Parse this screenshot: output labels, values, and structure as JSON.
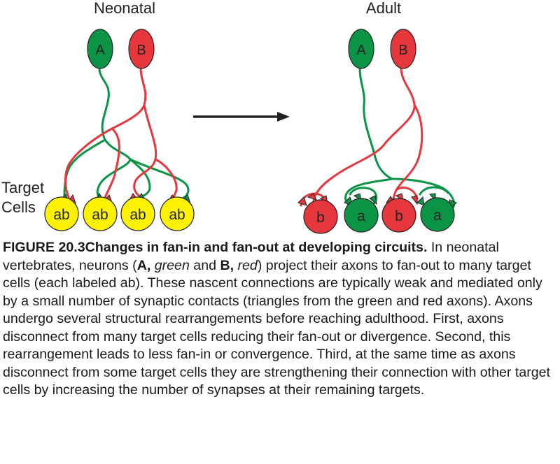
{
  "diagram": {
    "neonatal_title": "Neonatal",
    "adult_title": "Adult",
    "neuron_a_label": "A",
    "neuron_b_label": "B",
    "target_label_line1": "Target",
    "target_label_line2": "Cells",
    "neonatal_targets": [
      "ab",
      "ab",
      "ab",
      "ab"
    ],
    "adult_targets": [
      "b",
      "a",
      "b",
      "a"
    ]
  },
  "colors": {
    "green": "#0b9446",
    "red": "#e6373d",
    "yellow": "#fff200",
    "outline": "#222222"
  },
  "caption": {
    "label": "FIGURE 20.3Changes in fan-in and fan-out at developing circuits.",
    "t1": " In neonatal vertebrates, neurons (",
    "a": "A,",
    "t2": " ",
    "green": "green",
    "t3": " and ",
    "b": "B,",
    "t4": " ",
    "red": "red",
    "t5": ") project their axons to fan-out to many target cells (each labeled ab). These nascent connections are typically weak and mediated only by a small number of synaptic contacts (triangles from the green and red axons). Axons undergo several structural rearrangements before reaching adulthood. First, axons disconnect from many target cells reducing their fan-out or divergence. Second, this rearrangement leads to less fan-in or convergence. Third, at the same time as axons disconnect from some target cells they are strengthening their connection with other target cells by increasing the number of synapses at their remaining targets."
  }
}
